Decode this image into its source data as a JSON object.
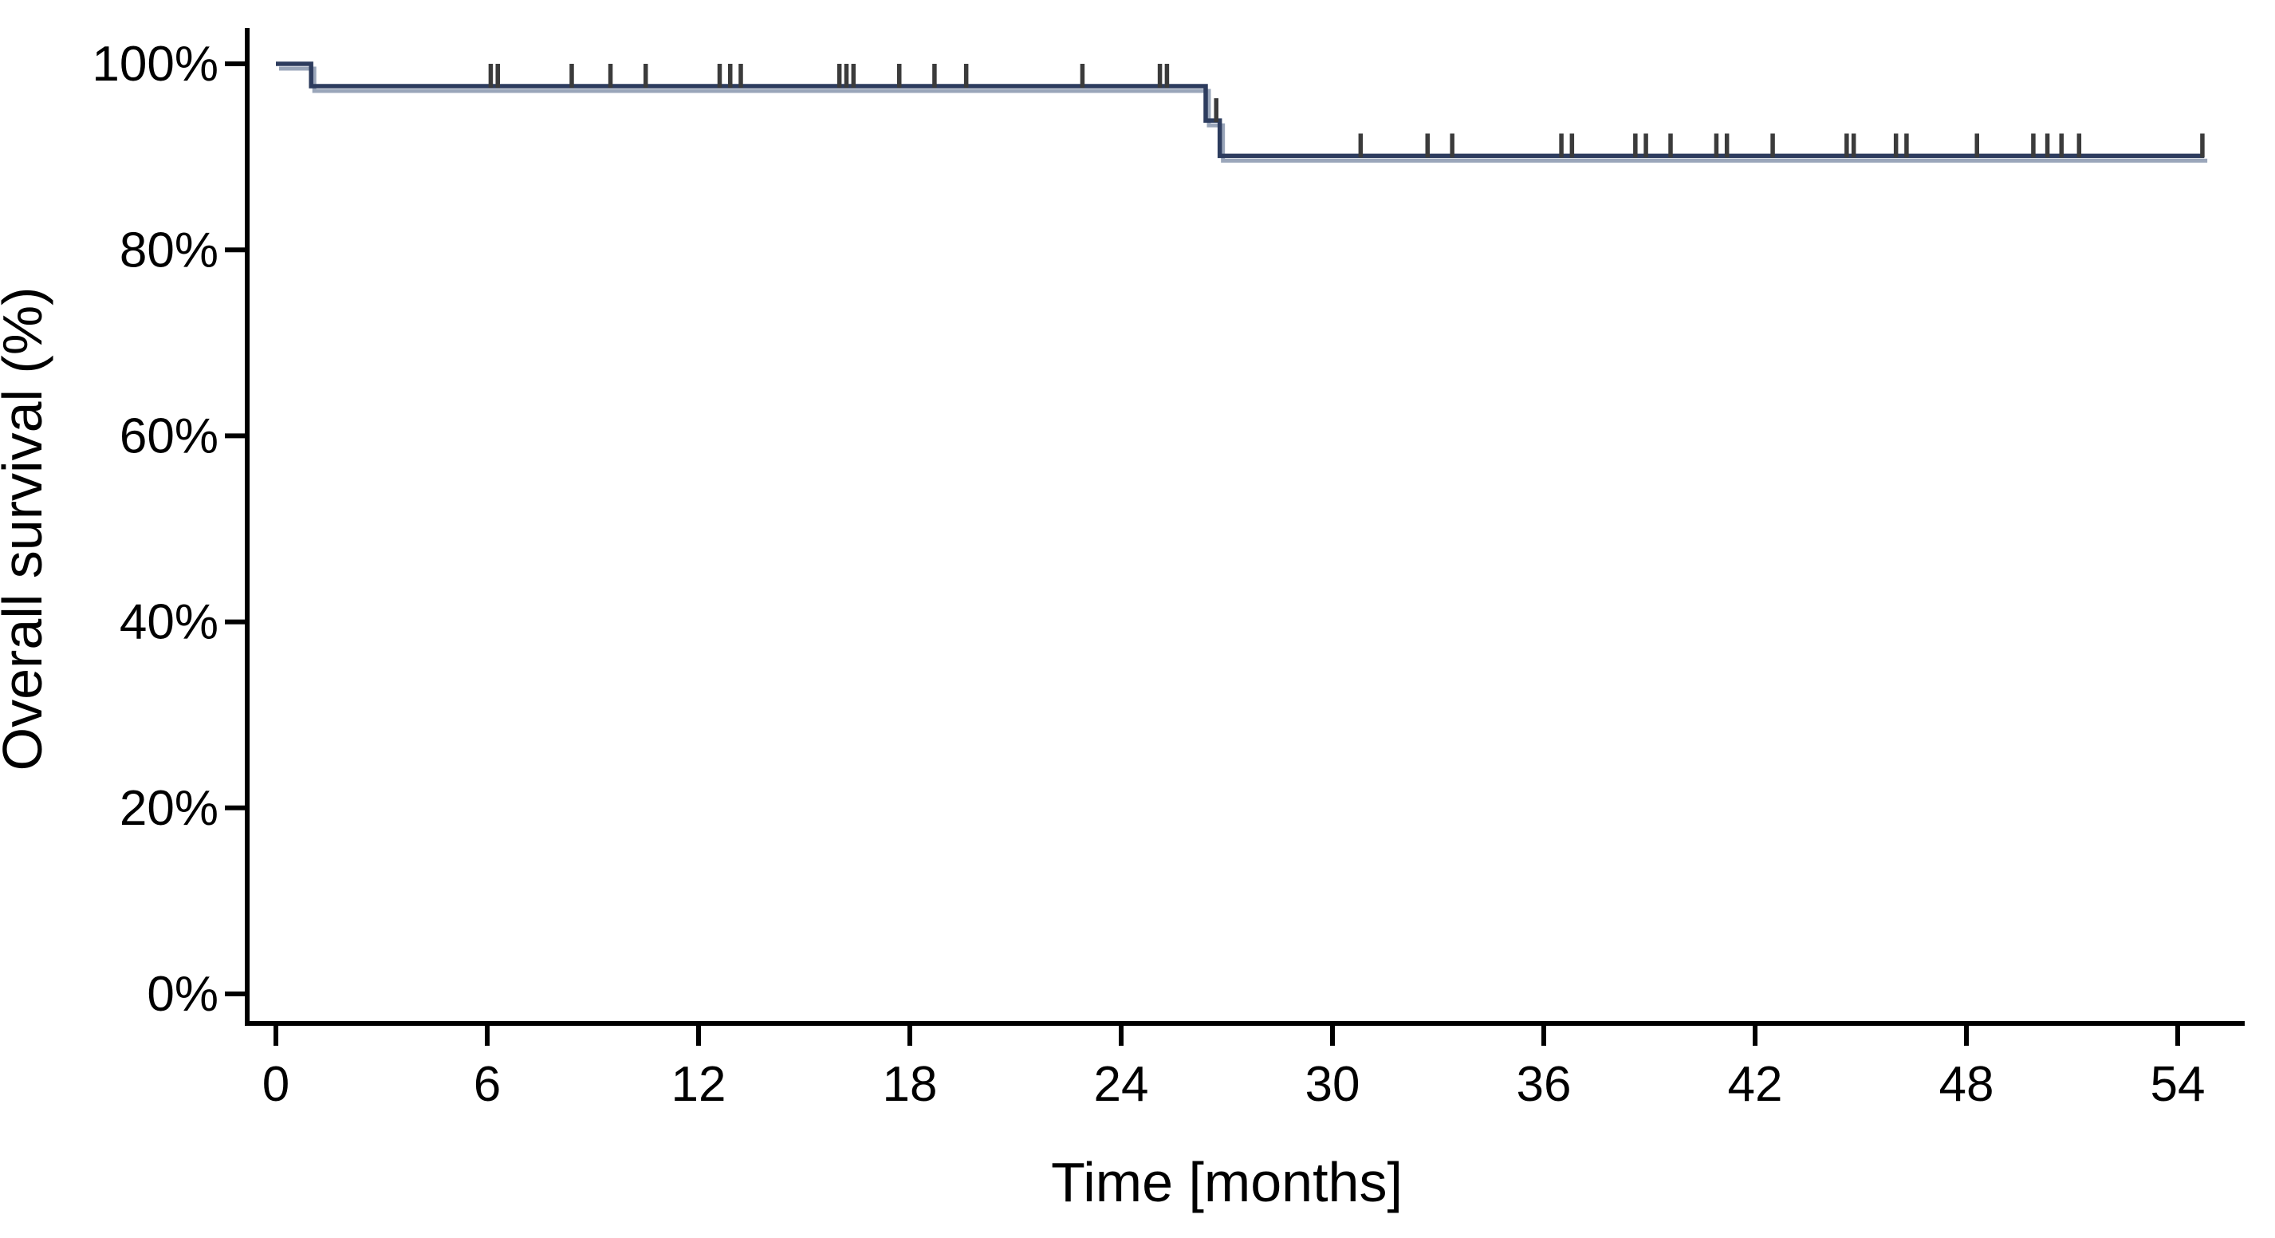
{
  "page": {
    "background_color": "#ffffff"
  },
  "chart_data": {
    "type": "line",
    "chart_style": "kaplan_meier_step_curve",
    "title": "",
    "xlabel": "Time [months]",
    "ylabel": "Overall survival (%)",
    "x_ticks": [
      0,
      6,
      12,
      18,
      24,
      30,
      36,
      42,
      48,
      54
    ],
    "x_tick_labels": [
      "0",
      "6",
      "12",
      "18",
      "24",
      "30",
      "36",
      "42",
      "48",
      "54"
    ],
    "y_ticks": [
      100,
      80,
      60,
      40,
      20,
      0
    ],
    "y_tick_labels": [
      "100%",
      "80%",
      "60%",
      "40%",
      "20%",
      "0%"
    ],
    "xlim": [
      0,
      56
    ],
    "ylim": [
      0,
      104
    ],
    "grid": false,
    "legend": "none",
    "axis_color": "#000000",
    "text_color": "#000000",
    "series": [
      {
        "name": "Overall survival",
        "color": "#2d3c5e",
        "shadow_color": "#9aa6ba",
        "censor_marker_color": "#3b3b3b",
        "steps": [
          {
            "time": 0,
            "survival_pct": 100
          },
          {
            "time": 1.0,
            "survival_pct": 97.6
          },
          {
            "time": 26.4,
            "survival_pct": 93.9
          },
          {
            "time": 26.8,
            "survival_pct": 90.1
          }
        ],
        "end_time": 54.75,
        "censor_times": [
          6.1,
          6.3,
          8.4,
          9.5,
          10.5,
          12.6,
          12.9,
          13.2,
          16.0,
          16.2,
          16.4,
          17.7,
          18.7,
          19.6,
          22.9,
          25.1,
          25.3,
          26.7,
          30.8,
          32.7,
          33.4,
          36.5,
          36.8,
          38.6,
          38.9,
          39.6,
          40.9,
          41.2,
          42.5,
          44.6,
          44.8,
          46.0,
          46.3,
          48.3,
          49.9,
          50.3,
          50.7,
          51.2,
          54.7
        ]
      }
    ]
  }
}
